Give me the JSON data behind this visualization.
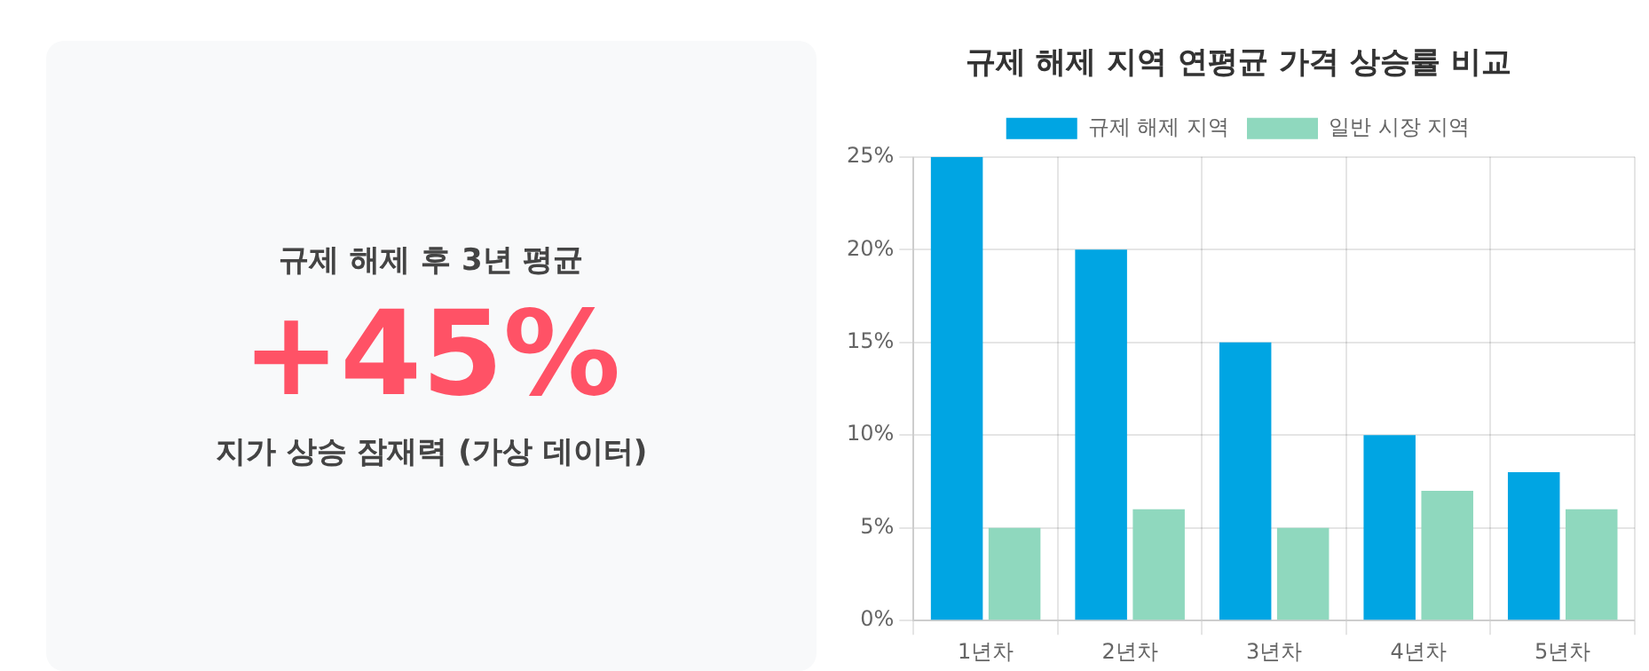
{
  "chart_data": [
    {
      "type": "other",
      "title": "규제 해제 후 3년 평균",
      "annotations": [
        "+45%",
        "지가 상승 잠재력 (가상 데이터)"
      ]
    },
    {
      "type": "bar",
      "title": "규제 해제 지역 연평균 가격 상승률 비교",
      "categories": [
        "1년차",
        "2년차",
        "3년차",
        "4년차",
        "5년차"
      ],
      "series": [
        {
          "name": "규제 해제 지역",
          "color": "#00a5e3",
          "values": [
            25,
            20,
            15,
            10,
            8
          ]
        },
        {
          "name": "일반 시장 지역",
          "color": "#8fd8be",
          "values": [
            5,
            6,
            5,
            7,
            6
          ]
        }
      ],
      "ylim": [
        0,
        25
      ],
      "yticks": [
        {
          "value": 0,
          "label": "0%"
        },
        {
          "value": 5,
          "label": "5%"
        },
        {
          "value": 10,
          "label": "10%"
        },
        {
          "value": 15,
          "label": "15%"
        },
        {
          "value": 20,
          "label": "20%"
        },
        {
          "value": 25,
          "label": "25%"
        }
      ],
      "grid": true,
      "legend": "top"
    }
  ]
}
